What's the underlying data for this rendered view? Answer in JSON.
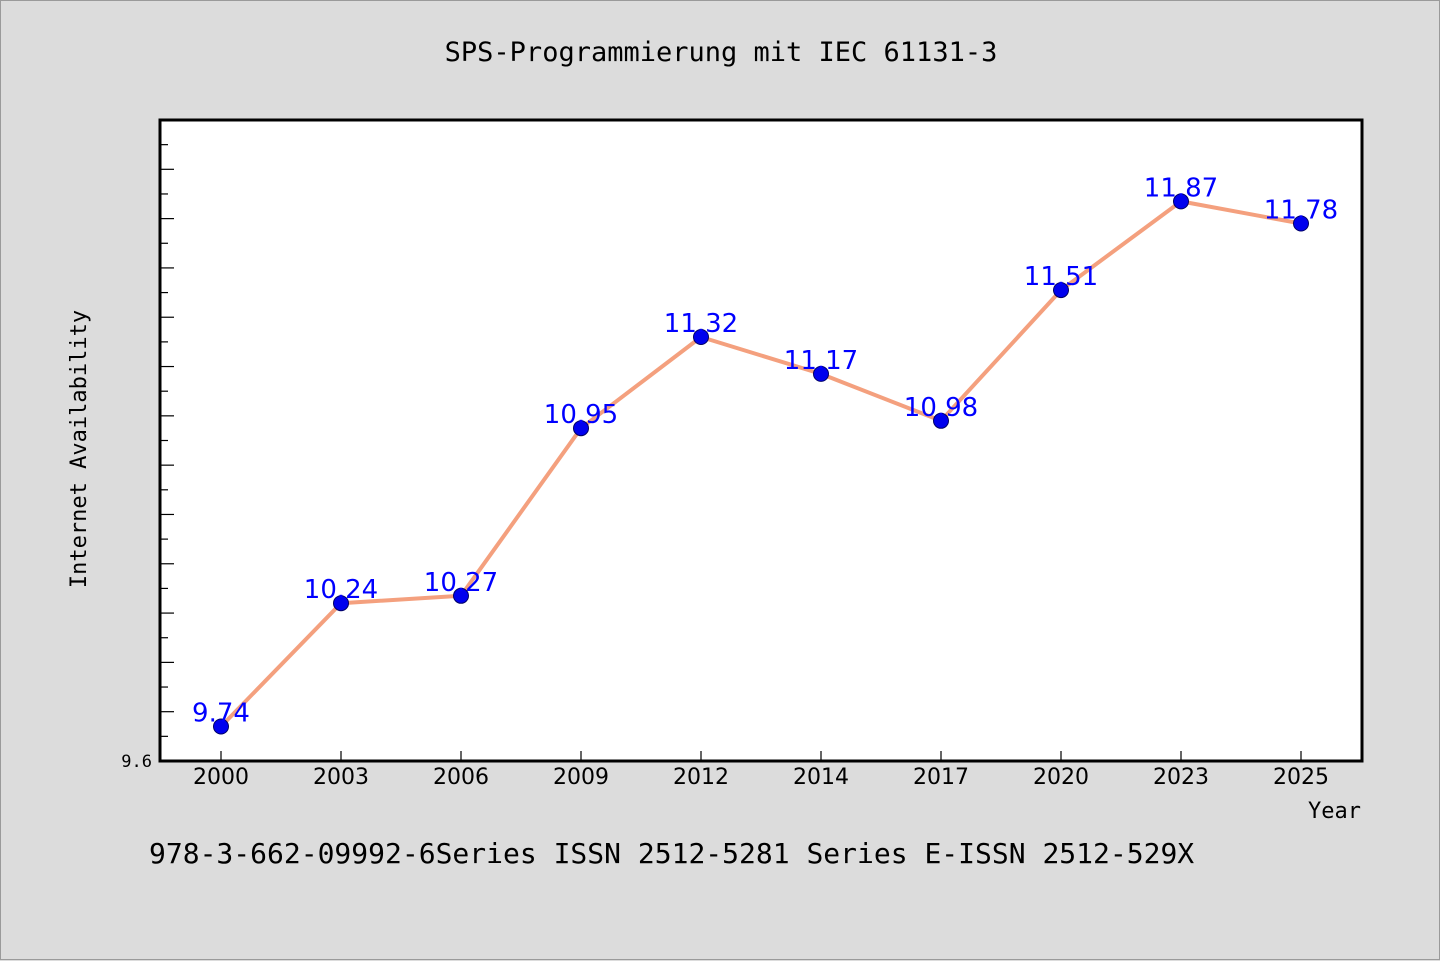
{
  "chart_data": {
    "type": "line",
    "title": "SPS-Programmierung mit IEC 61131-3",
    "xlabel": "Year",
    "ylabel": "Internet Availability",
    "footer": "978-3-662-09992-6Series ISSN 2512-5281 Series E-ISSN 2512-529X",
    "categories": [
      "2000",
      "2003",
      "2006",
      "2009",
      "2012",
      "2014",
      "2017",
      "2020",
      "2023",
      "2025"
    ],
    "series": [
      {
        "values": [
          9.74,
          10.24,
          10.27,
          10.95,
          11.32,
          11.17,
          10.98,
          11.51,
          11.87,
          11.78
        ]
      }
    ],
    "data_labels": [
      "9.74",
      "10.24",
      "10.27",
      "10.95",
      "11.32",
      "11.17",
      "10.98",
      "11.51",
      "11.87",
      "11.78"
    ],
    "y_tick_labels": [
      "9.6"
    ],
    "ylim": [
      9.6,
      12.2
    ],
    "y_minor_tick_step": 0.1,
    "grid": false,
    "legend": "none",
    "colors": {
      "background": "#dcdcdc",
      "plot_background": "#ffffff",
      "line": "#f4a07e",
      "marker_fill": "#0000ee",
      "marker_edge": "#000066",
      "data_label": "#0000ff",
      "text": "#000000"
    }
  }
}
